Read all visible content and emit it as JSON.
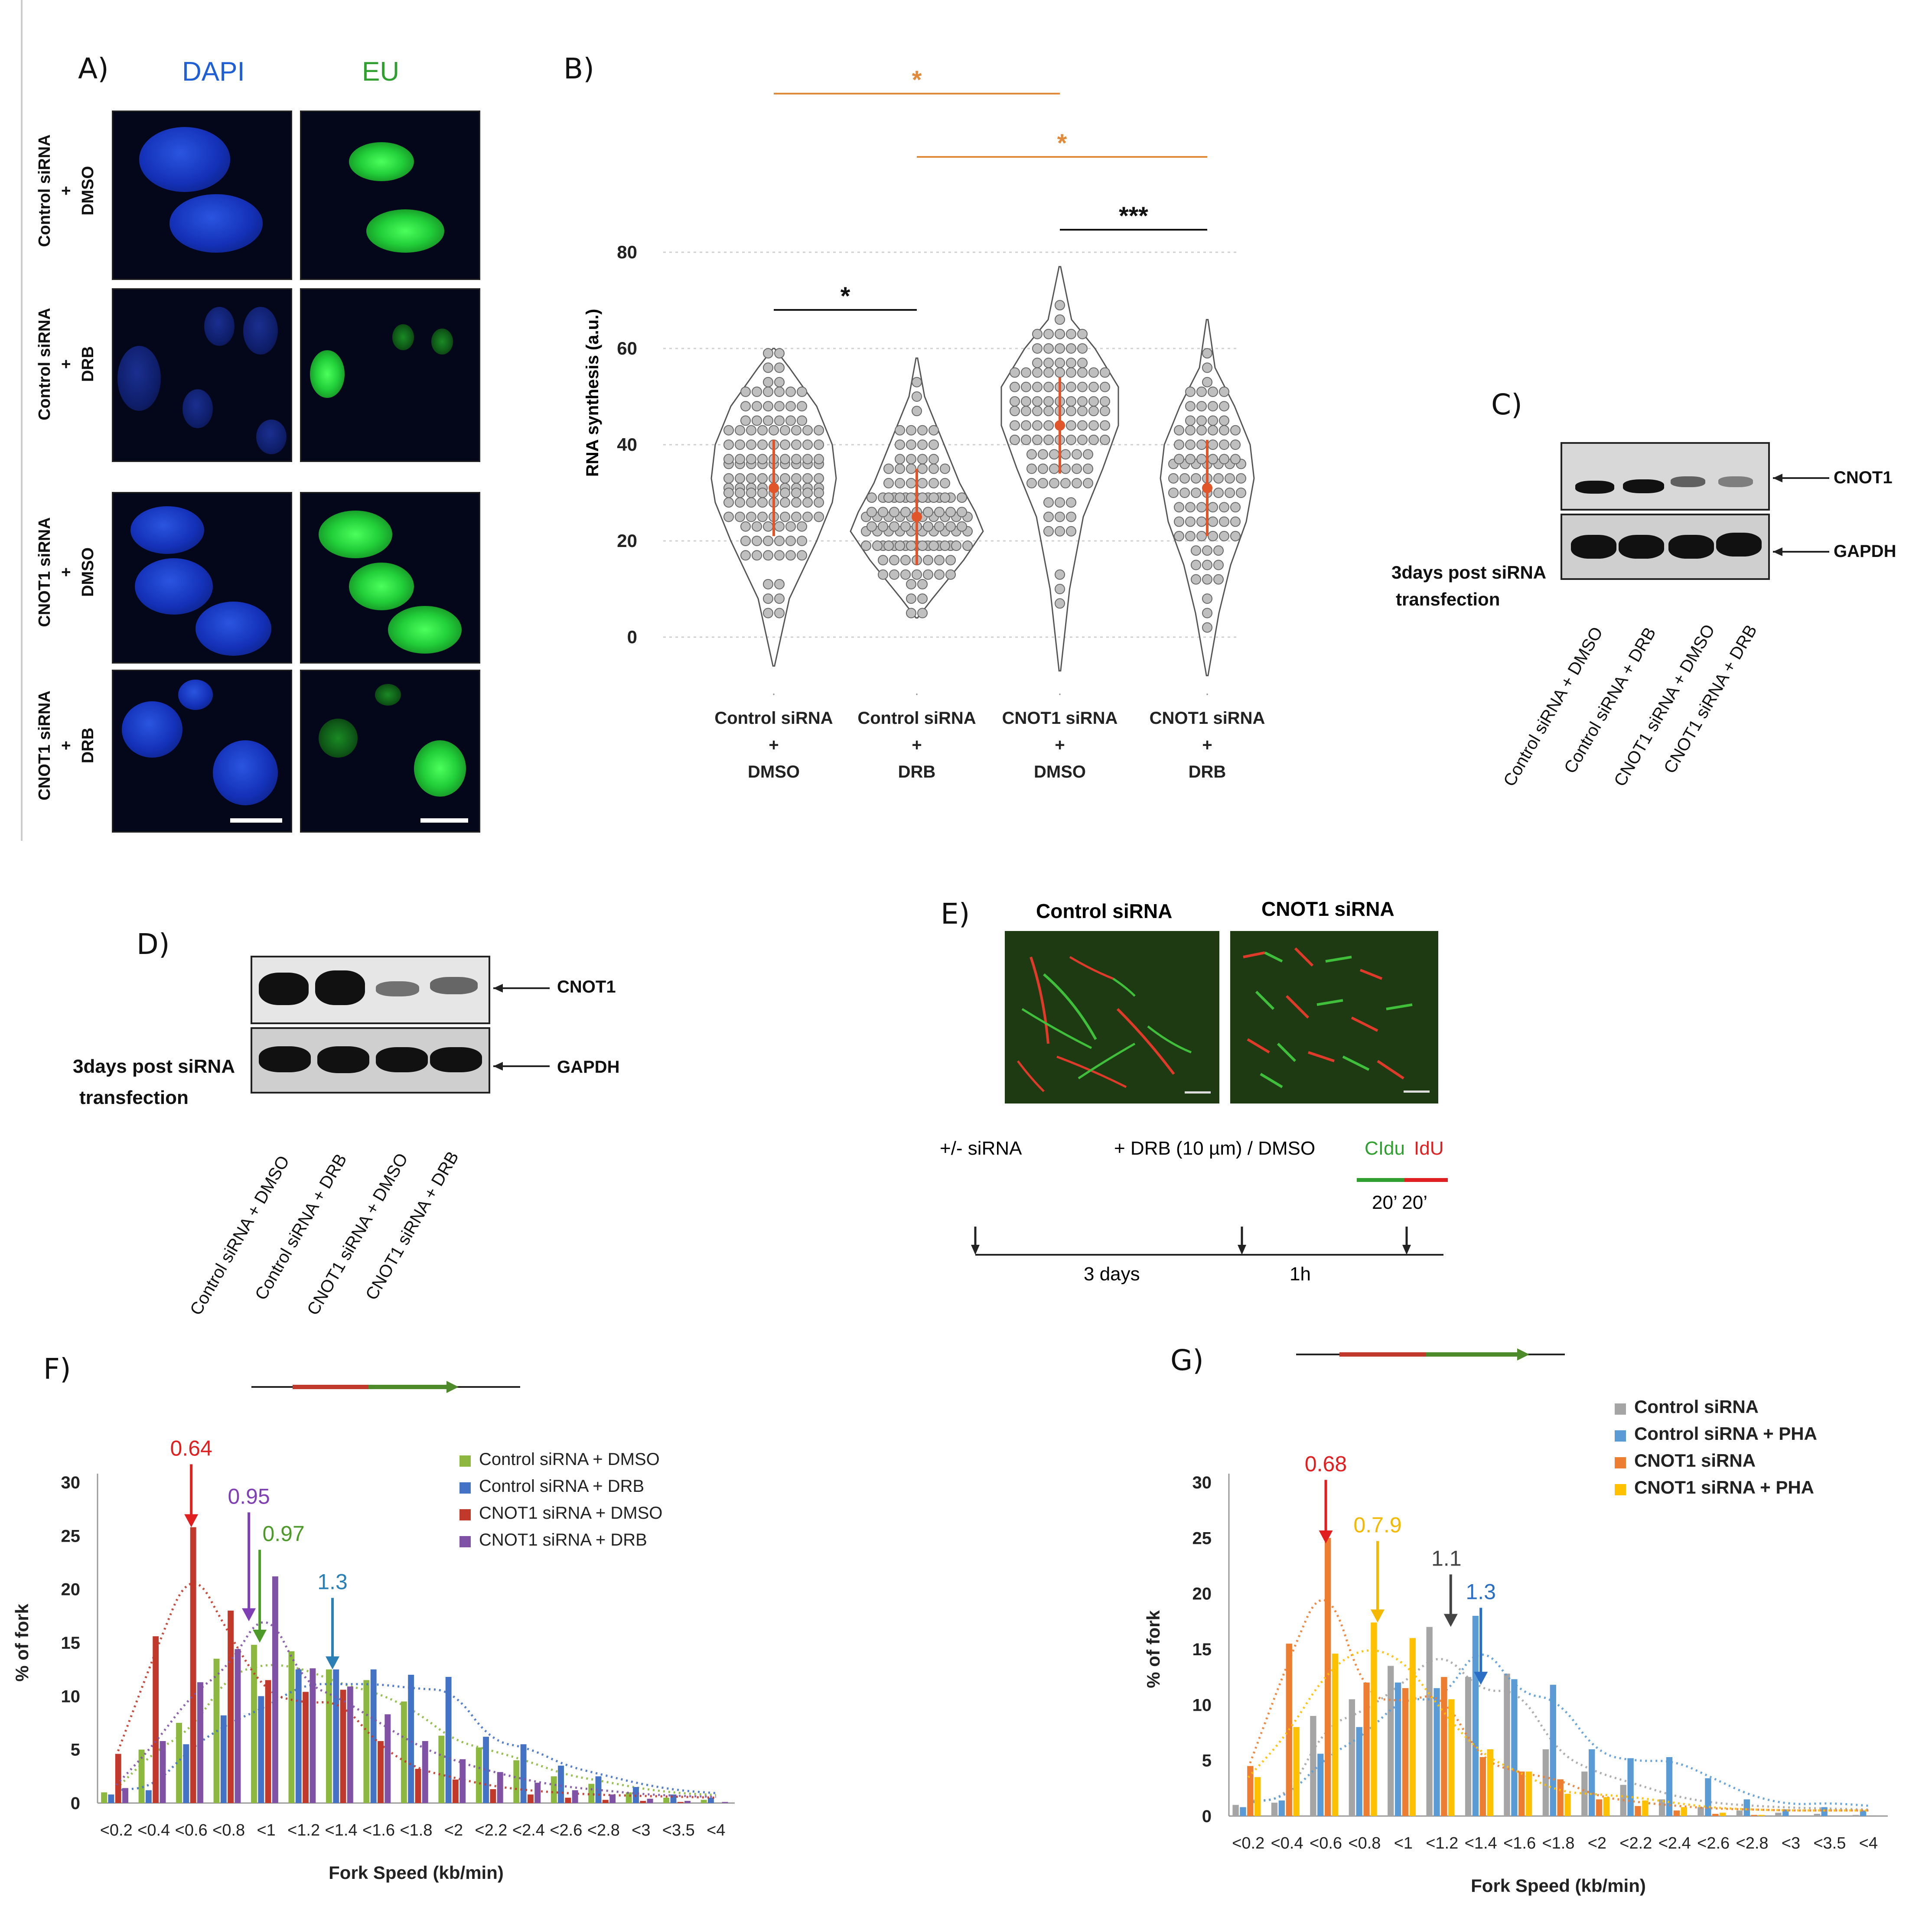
{
  "panel_letters": {
    "a": "A)",
    "b": "B)",
    "c": "C)",
    "d": "D)",
    "e": "E)",
    "f": "F)",
    "g": "G)"
  },
  "panel_a": {
    "col_labels": [
      "DAPI",
      "EU"
    ],
    "col_colors": [
      "#1f5fd6",
      "#2fa02f"
    ],
    "row_labels": [
      [
        "Control siRNA",
        "+",
        "DMSO"
      ],
      [
        "Control siRNA",
        "+",
        "DRB"
      ],
      [
        "CNOT1 siRNA",
        "+",
        "DMSO"
      ],
      [
        "CNOT1 siRNA",
        "+",
        "DRB"
      ]
    ]
  },
  "panel_b": {
    "ylabel": "RNA synthesis  (a.u.)",
    "yticks": [
      "80",
      "60",
      "40",
      "20",
      "0"
    ],
    "groups": [
      [
        "Control siRNA",
        "+",
        "DMSO"
      ],
      [
        "Control siRNA",
        "+",
        "DRB"
      ],
      [
        "CNOT1 siRNA",
        "+",
        "DMSO"
      ],
      [
        "CNOT1 siRNA",
        "+",
        "DRB"
      ]
    ],
    "sig": [
      "*",
      "*",
      "*",
      "***"
    ],
    "sig_colors": [
      "#e08a3a",
      "#e08a3a",
      "#111111",
      "#111111"
    ]
  },
  "panel_c": {
    "bands": [
      "CNOT1",
      "GAPDH"
    ],
    "note": [
      "3days post siRNA",
      "transfection"
    ],
    "lanes": [
      "Control siRNA + DMSO",
      "Control siRNA + DRB",
      "CNOT1 siRNA + DMSO",
      "CNOT1 siRNA + DRB"
    ]
  },
  "panel_d": {
    "bands": [
      "CNOT1",
      "GAPDH"
    ],
    "note": [
      "3days post siRNA",
      "transfection"
    ],
    "lanes": [
      "Control siRNA + DMSO",
      "Control siRNA + DRB",
      "CNOT1 siRNA + DMSO",
      "CNOT1 siRNA + DRB"
    ]
  },
  "panel_e": {
    "titles": [
      "Control siRNA",
      "CNOT1 siRNA"
    ],
    "steps": [
      "+/- siRNA",
      "+ DRB (10 µm) / DMSO"
    ],
    "cldu": "CIdu",
    "idu": "IdU",
    "pulse": "20’ 20’",
    "intervals": [
      "3 days",
      "1h"
    ]
  },
  "chart_data": [
    {
      "type": "bar",
      "panel": "F",
      "xlabel": "Fork Speed (kb/min)",
      "ylabel": "% of fork",
      "ylim": [
        0,
        30
      ],
      "yticks": [
        "0",
        "5",
        "10",
        "15",
        "20",
        "25",
        "30"
      ],
      "categories": [
        "<0.2",
        "<0.4",
        "<0.6",
        "<0.8",
        "<1",
        "<1.2",
        "<1.4",
        "<1.6",
        "<1.8",
        "<2",
        "<2.2",
        "<2.4",
        "<2.6",
        "<2.8",
        "<3",
        "<3.5",
        "<4"
      ],
      "legend_position": "top-right",
      "series": [
        {
          "name": "Control siRNA + DMSO",
          "color": "#8db83f",
          "values": [
            1,
            5,
            7.5,
            13.5,
            14.8,
            14.2,
            12.5,
            11.5,
            9.5,
            6.3,
            5.2,
            4,
            2.5,
            1.8,
            1,
            0.5,
            0.3
          ]
        },
        {
          "name": "Control siRNA + DRB",
          "color": "#4472c4",
          "values": [
            0.8,
            1.2,
            5.5,
            8.2,
            10,
            12.5,
            12.5,
            12.5,
            12,
            11.8,
            6.2,
            5.5,
            3.5,
            2.5,
            1.5,
            0.8,
            0.5
          ]
        },
        {
          "name": "CNOT1 siRNA + DMSO",
          "color": "#c0392b",
          "values": [
            4.6,
            15.6,
            25.8,
            18,
            11.5,
            10.4,
            10.6,
            5.8,
            3.2,
            2.2,
            1.3,
            0.8,
            0.5,
            0.3,
            0.2,
            0.1,
            0
          ]
        },
        {
          "name": "CNOT1 siRNA + DRB",
          "color": "#7f52a5",
          "values": [
            1.4,
            5.8,
            11.3,
            14.4,
            21.2,
            12.6,
            10.9,
            8.3,
            5.8,
            4.1,
            2.9,
            1.9,
            1.2,
            0.8,
            0.4,
            0.2,
            0.1
          ]
        }
      ],
      "annotations": [
        {
          "text": "0.64",
          "color": "#e02020"
        },
        {
          "text": "0.95",
          "color": "#7f3fb5"
        },
        {
          "text": "0.97",
          "color": "#4d9a2a"
        },
        {
          "text": "1.3",
          "color": "#2a7fb5"
        }
      ]
    },
    {
      "type": "bar",
      "panel": "G",
      "xlabel": "Fork Speed (kb/min)",
      "ylabel": "% of fork",
      "ylim": [
        0,
        30
      ],
      "yticks": [
        "0",
        "5",
        "10",
        "15",
        "20",
        "25",
        "30"
      ],
      "categories": [
        "<0.2",
        "<0.4",
        "<0.6",
        "<0.8",
        "<1",
        "<1.2",
        "<1.4",
        "<1.6",
        "<1.8",
        "<2",
        "<2.2",
        "<2.4",
        "<2.6",
        "<2.8",
        "<3",
        "<3.5",
        "<4"
      ],
      "legend_position": "top-right",
      "series": [
        {
          "name": "Control siRNA",
          "color": "#a5a5a5",
          "values": [
            1,
            1.2,
            9,
            10.5,
            13.5,
            17,
            12.5,
            12.8,
            6,
            4,
            2.8,
            1.5,
            0.8,
            0.5,
            0.3,
            0.2,
            0.1
          ]
        },
        {
          "name": "Control siRNA + PHA",
          "color": "#5b9bd5",
          "values": [
            0.8,
            1.4,
            5.6,
            8,
            12,
            11.5,
            18,
            12.3,
            11.8,
            6,
            5.2,
            5.3,
            3.4,
            1.5,
            0.6,
            0.8,
            0.5
          ]
        },
        {
          "name": "CNOT1 siRNA",
          "color": "#ed7d31",
          "values": [
            4.5,
            15.5,
            25,
            12,
            11.5,
            12.5,
            5.3,
            4,
            3.3,
            1.5,
            0.9,
            0.5,
            0.2,
            0.1,
            0,
            0,
            0
          ]
        },
        {
          "name": "CNOT1 siRNA + PHA",
          "color": "#ffc000",
          "values": [
            3.5,
            8,
            14.6,
            17.4,
            16,
            10.5,
            6,
            4,
            2,
            1.7,
            1.4,
            0.8,
            0.3,
            0.1,
            0,
            0,
            0
          ]
        }
      ],
      "annotations": [
        {
          "text": "0.68",
          "color": "#e02020"
        },
        {
          "text": "0.7.9",
          "color": "#f5b800"
        },
        {
          "text": "1.1",
          "color": "#444444"
        },
        {
          "text": "1.3",
          "color": "#2a6fc5"
        }
      ]
    }
  ]
}
